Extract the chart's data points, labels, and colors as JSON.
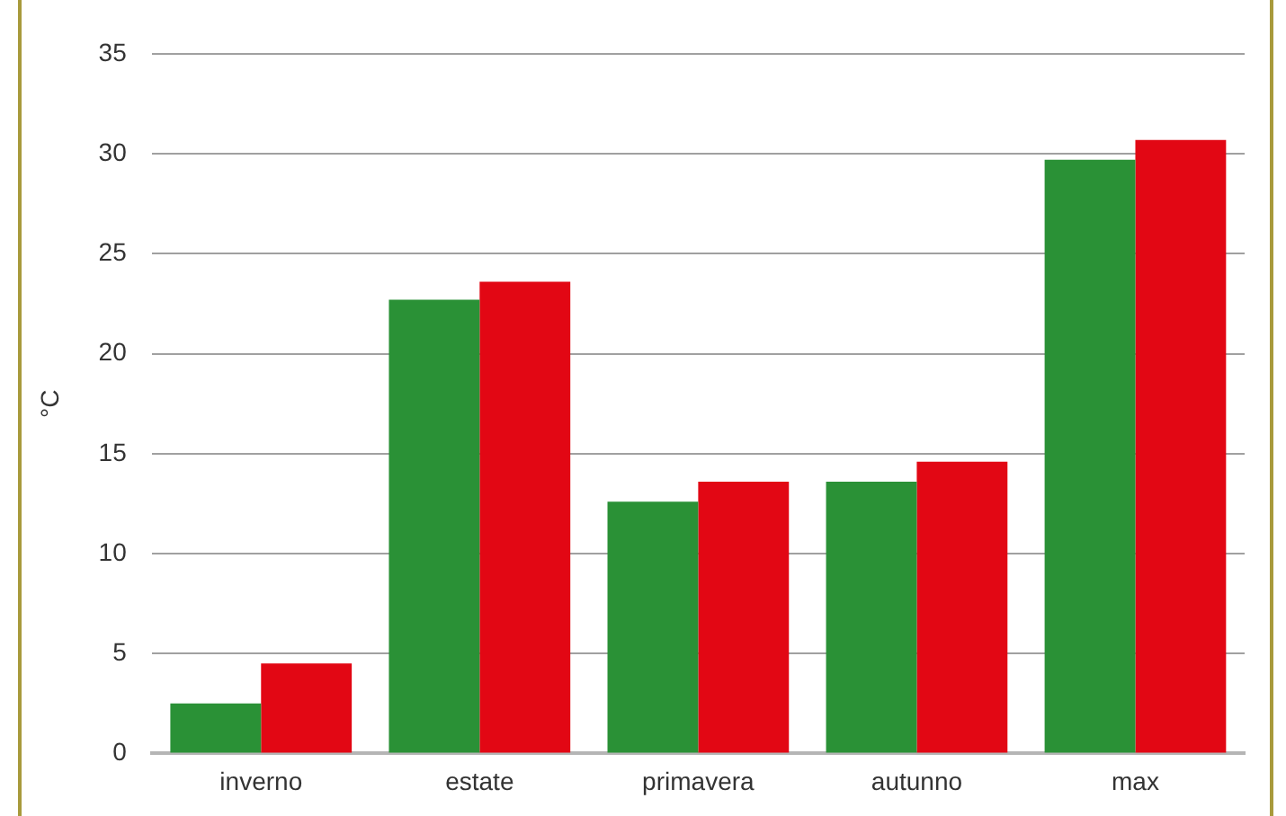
{
  "chart_data": {
    "type": "bar",
    "ylabel": "°C",
    "categories": [
      "inverno",
      "estate",
      "primavera",
      "autunno",
      "max"
    ],
    "series": [
      {
        "color": "#2a9136",
        "values": [
          2.5,
          22.7,
          12.6,
          13.6,
          29.7
        ]
      },
      {
        "color": "#e20714",
        "values": [
          4.5,
          23.6,
          13.6,
          14.6,
          30.7
        ]
      }
    ],
    "ylim": [
      0,
      35
    ],
    "yticks": [
      0,
      5,
      10,
      15,
      20,
      25,
      30,
      35
    ],
    "grid": "y",
    "legend": false
  }
}
